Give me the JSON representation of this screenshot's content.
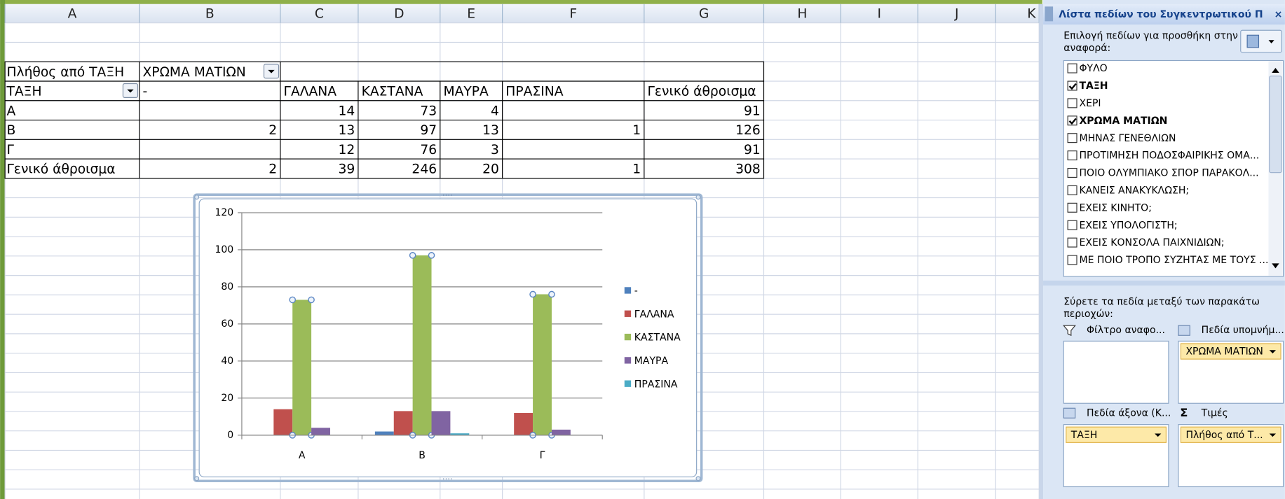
{
  "spreadsheet": {
    "columns": [
      "A",
      "B",
      "C",
      "D",
      "E",
      "F",
      "G",
      "H",
      "I",
      "J",
      "K"
    ],
    "pivot": {
      "title": "Πλήθος από ΤΑΞΗ",
      "column_field": "ΧΡΩΜΑ ΜΑΤΙΩΝ",
      "row_field": "ΤΑΞΗ",
      "headers": [
        "-",
        "ΓΑΛΑΝΑ",
        "ΚΑΣΤΑΝΑ",
        "ΜΑΥΡΑ",
        "ΠΡΑΣΙΝΑ",
        "Γενικό άθροισμα"
      ],
      "rows": [
        {
          "label": "Α",
          "values": [
            null,
            14,
            73,
            4,
            null,
            91
          ]
        },
        {
          "label": "Β",
          "values": [
            2,
            13,
            97,
            13,
            1,
            126
          ]
        },
        {
          "label": "Γ",
          "values": [
            null,
            12,
            76,
            3,
            null,
            91
          ]
        },
        {
          "label": "Γενικό άθροισμα",
          "values": [
            2,
            39,
            246,
            20,
            1,
            308
          ]
        }
      ]
    }
  },
  "chart_data": {
    "type": "bar",
    "categories": [
      "Α",
      "Β",
      "Γ"
    ],
    "series": [
      {
        "name": "-",
        "color": "#4f81bd",
        "values": [
          null,
          2,
          null
        ]
      },
      {
        "name": "ΓΑΛΑΝΑ",
        "color": "#c0504d",
        "values": [
          14,
          13,
          12
        ]
      },
      {
        "name": "ΚΑΣΤΑΝΑ",
        "color": "#9bbb59",
        "values": [
          73,
          97,
          76
        ]
      },
      {
        "name": "ΜΑΥΡΑ",
        "color": "#8064a2",
        "values": [
          4,
          13,
          3
        ]
      },
      {
        "name": "ΠΡΑΣΙΝΑ",
        "color": "#4bacc6",
        "values": [
          null,
          1,
          null
        ]
      }
    ],
    "ylim": [
      0,
      120
    ],
    "yticks": [
      0,
      20,
      40,
      60,
      80,
      100,
      120
    ],
    "grid": true,
    "legend": "right"
  },
  "field_list": {
    "title": "Λίστα πεδίων του Συγκεντρωτικού Π",
    "choose_label": [
      "Επιλογή πεδίων για προσθήκη στην",
      "αναφορά:"
    ],
    "fields": [
      {
        "name": "ΦΥΛΟ",
        "checked": false
      },
      {
        "name": "ΤΑΞΗ",
        "checked": true
      },
      {
        "name": "ΧΕΡΙ",
        "checked": false
      },
      {
        "name": "ΧΡΩΜΑ ΜΑΤΙΩΝ",
        "checked": true
      },
      {
        "name": "ΜΗΝΑΣ ΓΕΝΕΘΛΙΩΝ",
        "checked": false
      },
      {
        "name": "ΠΡΟΤΙΜΗΣΗ ΠΟΔΟΣΦΑΙΡΙΚΗΣ  ΟΜΑ...",
        "checked": false
      },
      {
        "name": "ΠΟΙΟ ΟΛΥΜΠΙΑΚΟ ΣΠΟΡ ΠΑΡΑΚΟΛ...",
        "checked": false
      },
      {
        "name": "ΚΑΝΕΙΣ ΑΝΑΚΥΚΛΩΣΗ;",
        "checked": false
      },
      {
        "name": "ΕΧΕΙΣ ΚΙΝΗΤΟ;",
        "checked": false
      },
      {
        "name": "ΕΧΕΙΣ ΥΠΟΛΟΓΙΣΤΗ;",
        "checked": false
      },
      {
        "name": "ΕΧΕΙΣ ΚΟΝΣΟΛΑ ΠΑΙΧΝΙΔΙΩΝ;",
        "checked": false
      },
      {
        "name": "ΜΕ ΠΟΙΟ ΤΡΟΠΟ ΣΥΖΗΤΑΣ ΜΕ ΤΟΥΣ ...",
        "checked": false
      }
    ],
    "drag_label": [
      "Σύρετε τα πεδία μεταξύ των παρακάτω",
      "περιοχών:"
    ],
    "areas": [
      {
        "label": "Φίλτρο αναφο...",
        "items": []
      },
      {
        "label": "Πεδία υπομνήμ...",
        "items": [
          "ΧΡΩΜΑ ΜΑΤΙΩΝ"
        ]
      },
      {
        "label": "Πεδία άξονα (Κ...",
        "items": [
          "ΤΑΞΗ"
        ]
      },
      {
        "label": "Τιμές",
        "items": [
          "Πλήθος από Τ..."
        ]
      }
    ]
  }
}
